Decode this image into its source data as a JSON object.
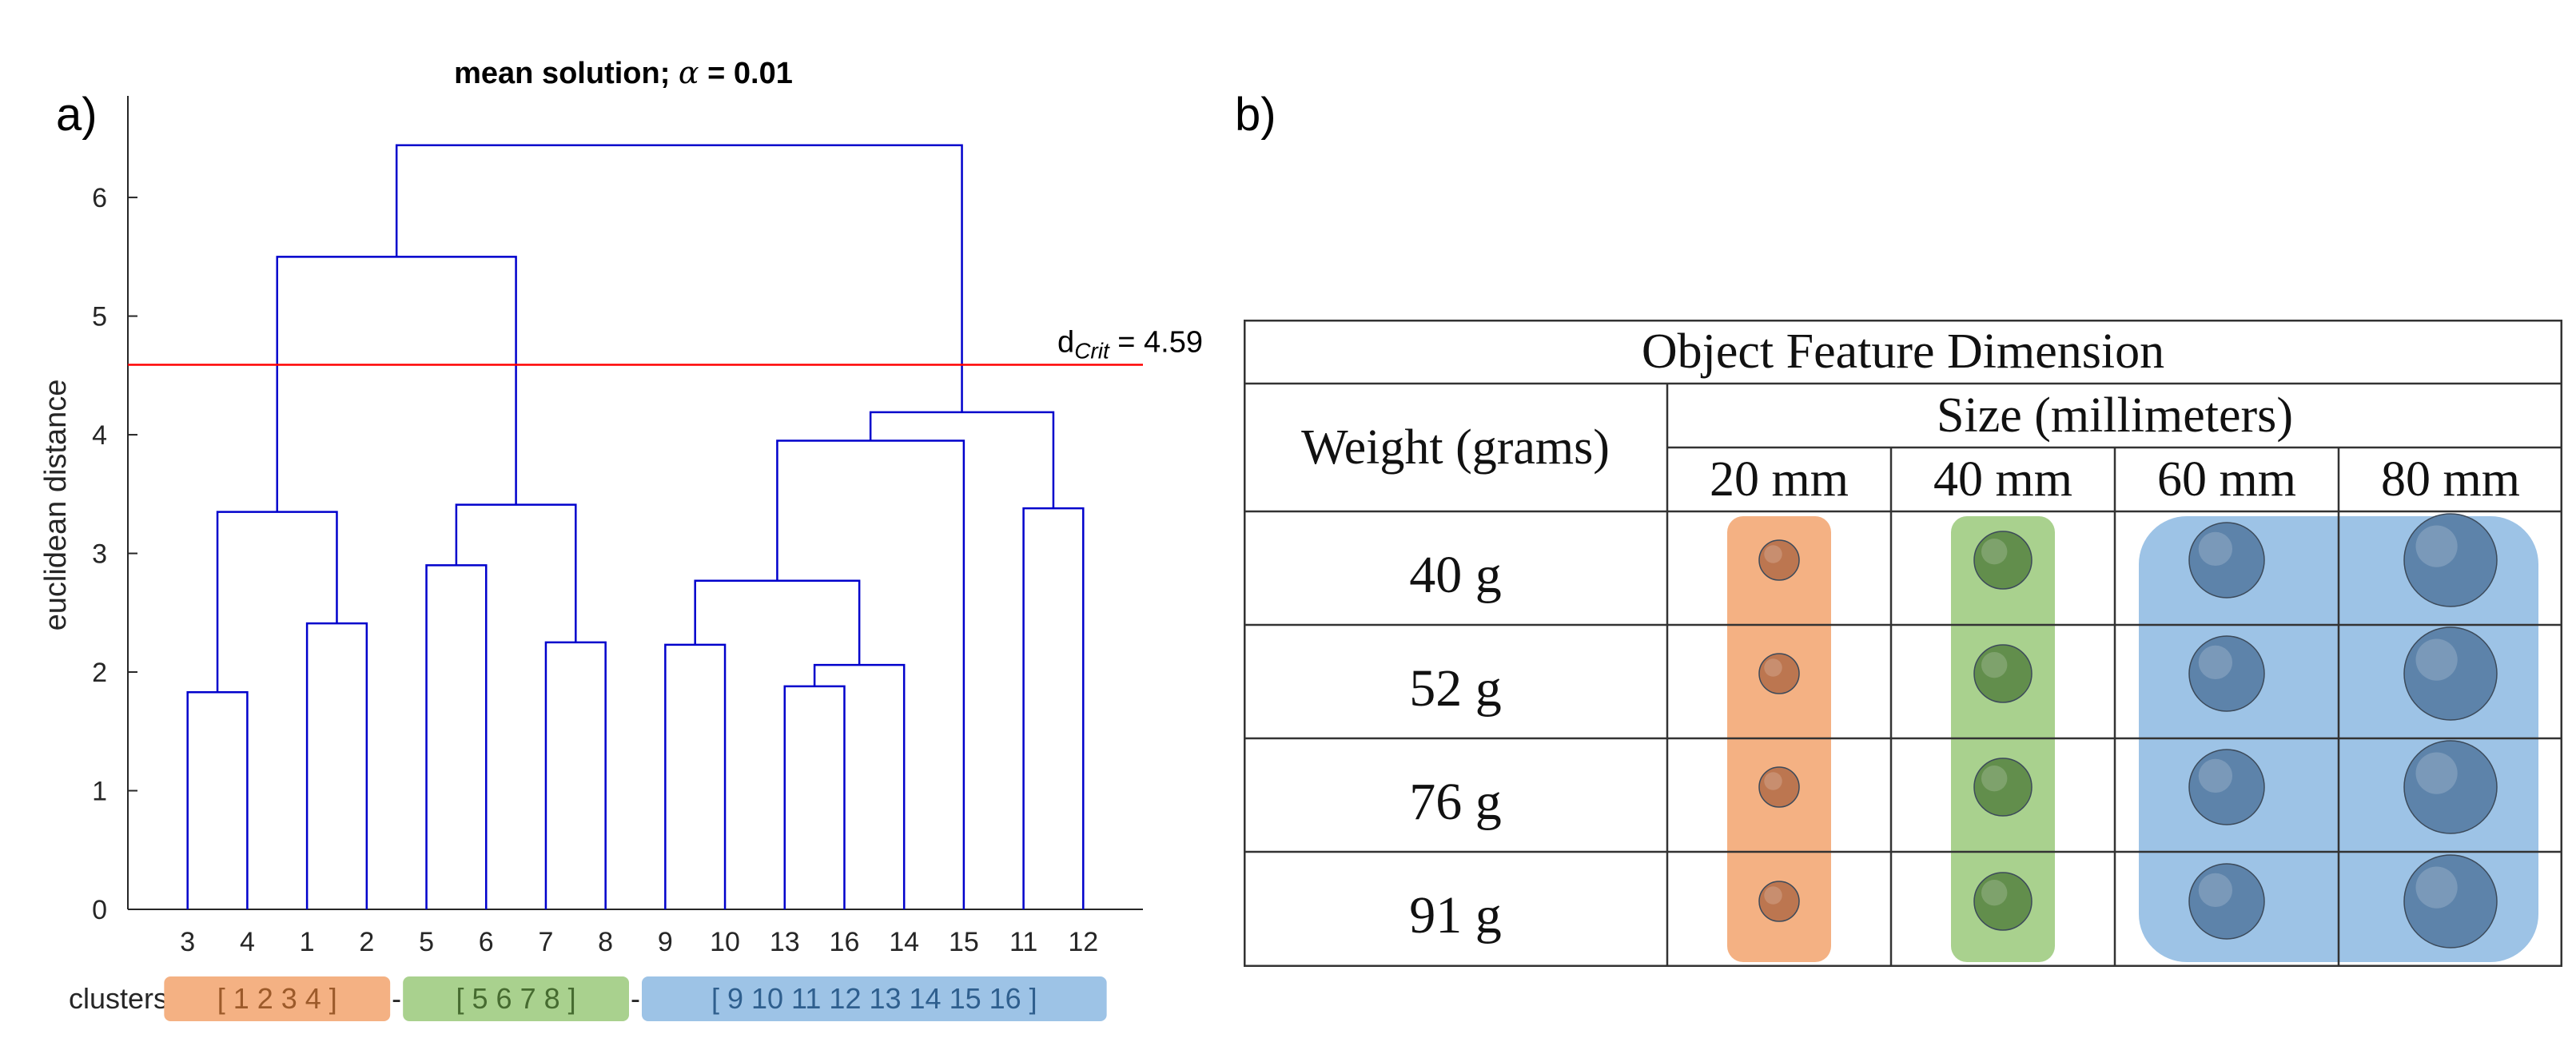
{
  "panels": {
    "a": "a)",
    "b": "b)"
  },
  "chart_data": [
    {
      "type": "dendrogram",
      "title_prefix": "mean solution; ",
      "title_symbol": "α",
      "title_suffix": " = 0.01",
      "ylabel": "euclidean distance",
      "xlabel": "",
      "ylim": [
        0,
        6.6
      ],
      "yticks": [
        0,
        1,
        2,
        3,
        4,
        5,
        6
      ],
      "leaf_order": [
        "3",
        "4",
        "1",
        "2",
        "5",
        "6",
        "7",
        "8",
        "9",
        "10",
        "13",
        "16",
        "14",
        "15",
        "11",
        "12"
      ],
      "merges": [
        {
          "left": "L:0",
          "right": "L:1",
          "height": 1.83
        },
        {
          "left": "L:2",
          "right": "L:3",
          "height": 2.41
        },
        {
          "left": "M:0",
          "right": "M:1",
          "height": 3.35
        },
        {
          "left": "L:4",
          "right": "L:5",
          "height": 2.9
        },
        {
          "left": "L:6",
          "right": "L:7",
          "height": 2.25
        },
        {
          "left": "M:3",
          "right": "M:4",
          "height": 3.41
        },
        {
          "left": "M:2",
          "right": "M:5",
          "height": 5.5
        },
        {
          "left": "L:8",
          "right": "L:9",
          "height": 2.23
        },
        {
          "left": "L:10",
          "right": "L:11",
          "height": 1.88
        },
        {
          "left": "M:8",
          "right": "L:12",
          "height": 2.06
        },
        {
          "left": "M:7",
          "right": "M:9",
          "height": 2.77
        },
        {
          "left": "M:10",
          "right": "L:13",
          "height": 3.95
        },
        {
          "left": "L:14",
          "right": "L:15",
          "height": 3.38
        },
        {
          "left": "M:11",
          "right": "M:12",
          "height": 4.19
        },
        {
          "left": "M:6",
          "right": "M:13",
          "height": 6.44
        }
      ],
      "threshold": {
        "value": 4.59,
        "label_main": "d",
        "label_sub": "Crit",
        "label_value": " = 4.59",
        "color": "#ff0000"
      },
      "line_color": "#0000cc",
      "clusters_label": "clusters:",
      "cluster_separator": "-",
      "clusters": [
        {
          "label": "[ 1  2  3  4 ]",
          "color": "#f4b183",
          "text_color": "#9c5a2a",
          "first_leaf": 0,
          "last_leaf": 3
        },
        {
          "label": "[ 5  6  7  8 ]",
          "color": "#a9d18e",
          "text_color": "#466b30",
          "first_leaf": 4,
          "last_leaf": 7
        },
        {
          "label": "[ 9  10  11  12  13  14  15  16 ]",
          "color": "#9dc3e6",
          "text_color": "#2f5f8e",
          "first_leaf": 8,
          "last_leaf": 15
        }
      ]
    },
    {
      "type": "table",
      "title": "Object Feature Dimension",
      "row_header": "Weight (grams)",
      "col_group_header": "Size (millimeters)",
      "columns": [
        "20 mm",
        "40 mm",
        "60 mm",
        "80 mm"
      ],
      "rows": [
        "40 g",
        "52 g",
        "76 g",
        "91 g"
      ],
      "sizes_mm": [
        20,
        40,
        60,
        80
      ],
      "cluster_colors": [
        "#f4b183",
        "#a9d18e",
        "#9dc3e6",
        "#9dc3e6"
      ],
      "ball_colors": [
        "#b8734d",
        "#5e8a49",
        "#5a7fa6",
        "#5a7fa6"
      ]
    }
  ]
}
